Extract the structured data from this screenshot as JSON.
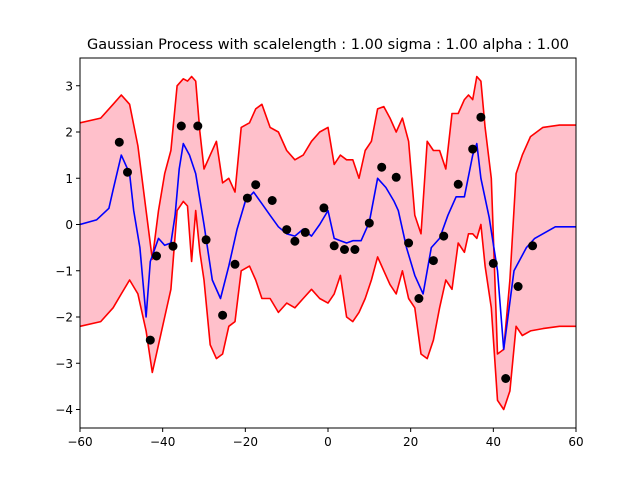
{
  "chart_data": {
    "type": "line",
    "title": "Gaussian Process with scalelength : 1.00 sigma : 1.00 alpha : 1.00",
    "xlabel": "",
    "ylabel": "",
    "xlim": [
      -60,
      60
    ],
    "ylim": [
      -4.4,
      3.6
    ],
    "x_ticks": [
      -60,
      -40,
      -20,
      0,
      20,
      40,
      60
    ],
    "x_tick_labels": [
      "−60",
      "−40",
      "−20",
      "0",
      "20",
      "40",
      "60"
    ],
    "y_ticks": [
      -4,
      -3,
      -2,
      -1,
      0,
      1,
      2,
      3
    ],
    "y_tick_labels": [
      "−4",
      "−3",
      "−2",
      "−1",
      "0",
      "1",
      "2",
      "3"
    ],
    "grid": false,
    "colors": {
      "band_fill": "#ffc0cb",
      "band_edge": "#ff0000",
      "mean": "#0000ff",
      "points": "#000000"
    },
    "series": [
      {
        "type": "band",
        "x": [
          -60,
          -55,
          -52,
          -50,
          -48,
          -46,
          -44,
          -42.5,
          -41,
          -39.5,
          -38,
          -36.5,
          -35,
          -34,
          -33,
          -32,
          -31,
          -30,
          -28.5,
          -27,
          -25.5,
          -24,
          -22.5,
          -21,
          -19,
          -17.5,
          -16,
          -14,
          -12,
          -10,
          -8,
          -6,
          -4,
          -2,
          0,
          1.5,
          3,
          4.5,
          6,
          7.5,
          9,
          10.5,
          12,
          13.5,
          15,
          16.5,
          18,
          19.5,
          21,
          22.5,
          24,
          25.5,
          27,
          28.5,
          30,
          31.5,
          33,
          34,
          35,
          36,
          37,
          38,
          39.5,
          41,
          42.5,
          44,
          45.5,
          47,
          49,
          52,
          56,
          60
        ],
        "upper": [
          2.2,
          2.3,
          2.6,
          2.8,
          2.6,
          1.7,
          0.3,
          -0.75,
          0.3,
          1.1,
          1.6,
          3.0,
          3.15,
          3.1,
          3.2,
          3.1,
          2.0,
          1.2,
          1.5,
          1.8,
          0.9,
          1.0,
          0.7,
          2.1,
          2.2,
          2.5,
          2.6,
          2.1,
          2.0,
          1.6,
          1.4,
          1.5,
          1.8,
          2.0,
          2.1,
          1.3,
          1.5,
          1.4,
          1.4,
          1.0,
          1.6,
          1.8,
          2.5,
          2.55,
          2.3,
          2.0,
          2.3,
          1.8,
          0.2,
          -0.2,
          1.8,
          1.6,
          1.6,
          1.2,
          2.4,
          2.4,
          2.7,
          2.8,
          2.7,
          3.2,
          3.1,
          2.1,
          1.0,
          -2.8,
          -2.7,
          -1.2,
          1.1,
          1.5,
          1.9,
          2.1,
          2.15,
          2.15
        ],
        "lower": [
          -2.2,
          -2.1,
          -1.8,
          -1.5,
          -1.2,
          -1.5,
          -2.3,
          -3.2,
          -2.6,
          -2.0,
          -1.4,
          0.3,
          0.5,
          0.4,
          -0.8,
          0.3,
          -0.6,
          -1.2,
          -2.6,
          -2.9,
          -2.8,
          -2.2,
          -2.1,
          -1.0,
          -0.9,
          -1.2,
          -1.6,
          -1.6,
          -1.9,
          -1.7,
          -1.8,
          -1.6,
          -1.4,
          -1.6,
          -1.7,
          -1.5,
          -1.1,
          -2.0,
          -2.1,
          -1.9,
          -1.6,
          -1.2,
          -0.7,
          -1.0,
          -1.3,
          -1.5,
          -1.0,
          -1.6,
          -1.8,
          -2.8,
          -2.9,
          -2.5,
          -1.8,
          -1.2,
          -1.4,
          -0.4,
          -0.6,
          -0.2,
          -0.2,
          -0.3,
          0.0,
          -0.9,
          -1.8,
          -3.8,
          -4.0,
          -3.6,
          -2.2,
          -2.4,
          -2.3,
          -2.25,
          -2.2,
          -2.2
        ]
      },
      {
        "type": "line",
        "x": [
          -60,
          -56,
          -53,
          -52,
          -50,
          -48,
          -47,
          -45.5,
          -44,
          -43,
          -41,
          -39.5,
          -38,
          -37,
          -36,
          -35,
          -33.5,
          -32,
          -30,
          -28,
          -26,
          -24,
          -22,
          -20,
          -18,
          -16,
          -14,
          -12,
          -10,
          -8,
          -6,
          -4,
          -2,
          0,
          1.5,
          3,
          4.5,
          6,
          8,
          10,
          12,
          14,
          16,
          17,
          19,
          21,
          23,
          25,
          27,
          29,
          31,
          33,
          35,
          36,
          37,
          39,
          41,
          42.5,
          45,
          48,
          50,
          55,
          60
        ],
        "y": [
          0.0,
          0.1,
          0.35,
          0.75,
          1.5,
          1.1,
          0.3,
          -0.5,
          -2.0,
          -0.8,
          -0.3,
          -0.45,
          -0.4,
          0.2,
          1.2,
          1.75,
          1.5,
          1.1,
          0.0,
          -1.2,
          -1.6,
          -0.9,
          -0.1,
          0.5,
          0.7,
          0.45,
          0.2,
          -0.05,
          -0.2,
          -0.25,
          -0.1,
          -0.25,
          0.0,
          0.3,
          -0.3,
          -0.35,
          -0.4,
          -0.35,
          -0.35,
          0.05,
          1.0,
          0.8,
          0.5,
          0.3,
          -0.5,
          -1.1,
          -1.5,
          -0.5,
          -0.3,
          0.2,
          0.6,
          0.6,
          1.5,
          1.75,
          1.0,
          0.15,
          -1.0,
          -2.7,
          -1.0,
          -0.5,
          -0.3,
          -0.05,
          -0.05
        ]
      },
      {
        "type": "scatter",
        "x": [
          -50.5,
          -48.5,
          -43,
          -41.5,
          -37.5,
          -35.5,
          -31.5,
          -29.5,
          -25.5,
          -22.5,
          -19.5,
          -17.5,
          -13.5,
          -10,
          -8,
          -5.5,
          -1,
          1.5,
          4,
          6.5,
          10,
          13,
          16.5,
          19.5,
          22,
          25.5,
          28,
          31.5,
          35,
          37,
          40,
          43,
          46,
          49.5
        ],
        "y": [
          1.78,
          1.13,
          -2.5,
          -0.68,
          -0.47,
          2.13,
          2.13,
          -0.33,
          -1.96,
          -0.86,
          0.57,
          0.86,
          0.52,
          -0.11,
          -0.36,
          -0.17,
          0.36,
          -0.46,
          -0.54,
          -0.54,
          0.03,
          1.24,
          1.02,
          -0.4,
          -1.6,
          -0.78,
          -0.25,
          0.87,
          1.63,
          2.32,
          -0.84,
          -3.33,
          -1.34,
          -0.46
        ]
      }
    ]
  }
}
